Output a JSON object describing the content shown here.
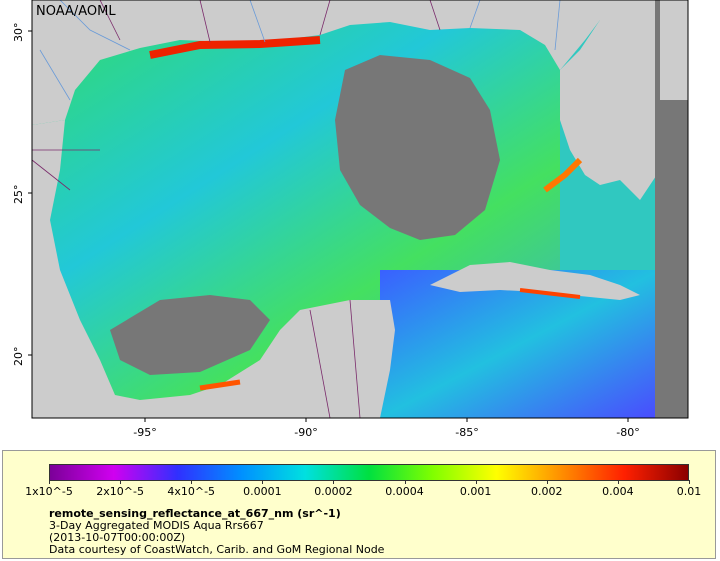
{
  "watermark": "NOAA/AOML",
  "colors": {
    "land": "#cccccc",
    "no_data": "#777777",
    "legend_bg": "#ffffcc",
    "border": "#7a2b6b",
    "rivers": "#6a9bd8"
  },
  "map": {
    "lat_ticks": [
      "30°",
      "25°",
      "20°"
    ],
    "lon_ticks": [
      "-95°",
      "-90°",
      "-85°",
      "-80°"
    ]
  },
  "colorbar": {
    "tick_labels": [
      "1x10^-5",
      "2x10^-5",
      "4x10^-5",
      "0.0001",
      "0.0002",
      "0.0004",
      "0.001",
      "0.002",
      "0.004",
      "0.01"
    ],
    "stops": [
      "#7b0098",
      "#d000f0",
      "#3030ff",
      "#0090ff",
      "#00e0e0",
      "#00e040",
      "#80ff00",
      "#ffff00",
      "#ff9000",
      "#ff2000",
      "#8b0000"
    ]
  },
  "meta": {
    "variable": "remote_sensing_reflectance_at_667_nm (sr^-1)",
    "product": "3-Day Aggregated MODIS Aqua Rrs667",
    "time": "(2013-10-07T00:00:00Z)",
    "credit": "Data courtesy of CoastWatch, Carib. and GoM Regional Node"
  }
}
